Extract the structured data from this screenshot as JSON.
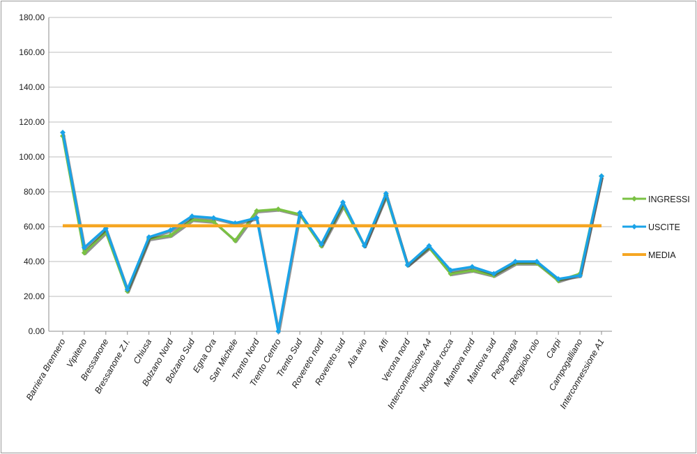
{
  "chart_data": {
    "type": "line",
    "ylim": [
      0,
      180
    ],
    "yticks": [
      "0.00",
      "20.00",
      "40.00",
      "60.00",
      "80.00",
      "100.00",
      "120.00",
      "140.00",
      "160.00",
      "180.00"
    ],
    "grid": true,
    "legend_position": "right",
    "categories": [
      "Barriera Brennero",
      "Vipiteno",
      "Bressanone",
      "Bressanone Z.I.",
      "Chiusa",
      "Bolzano Nord",
      "Bolzano Sud",
      "Egna Ora",
      "San Michele",
      "Trento Nord",
      "Trento Centro",
      "Trento Sud",
      "Rovereto nord",
      "Rovereto sud",
      "Ala avio",
      "Affi",
      "Verona nord",
      "Interconnessione A4",
      "Nogarole rocca",
      "Mantova nord",
      "Mantova sud",
      "Pegognaga",
      "Reggiolo rolo",
      "Carpi",
      "Campogalliano",
      "Interconnessione A1"
    ],
    "series": [
      {
        "name": "INGRESSI",
        "color": "#7ac143",
        "values": [
          112,
          45,
          57,
          23,
          53,
          55,
          64,
          63,
          52,
          69,
          70,
          67,
          49,
          72,
          49,
          78,
          38,
          48,
          33,
          35,
          32,
          39,
          39,
          29,
          33,
          89
        ]
      },
      {
        "name": "USCITE",
        "color": "#1aa3e8",
        "values": [
          114,
          48,
          59,
          24,
          54,
          58,
          66,
          65,
          62,
          65,
          0,
          68,
          50,
          74,
          49,
          79,
          38,
          49,
          35,
          37,
          33,
          40,
          40,
          30,
          32,
          89
        ]
      },
      {
        "name": "MEDIA",
        "color": "#f5a623",
        "values": [
          60.5,
          60.5,
          60.5,
          60.5,
          60.5,
          60.5,
          60.5,
          60.5,
          60.5,
          60.5,
          60.5,
          60.5,
          60.5,
          60.5,
          60.5,
          60.5,
          60.5,
          60.5,
          60.5,
          60.5,
          60.5,
          60.5,
          60.5,
          60.5,
          60.5,
          60.5
        ]
      }
    ]
  }
}
